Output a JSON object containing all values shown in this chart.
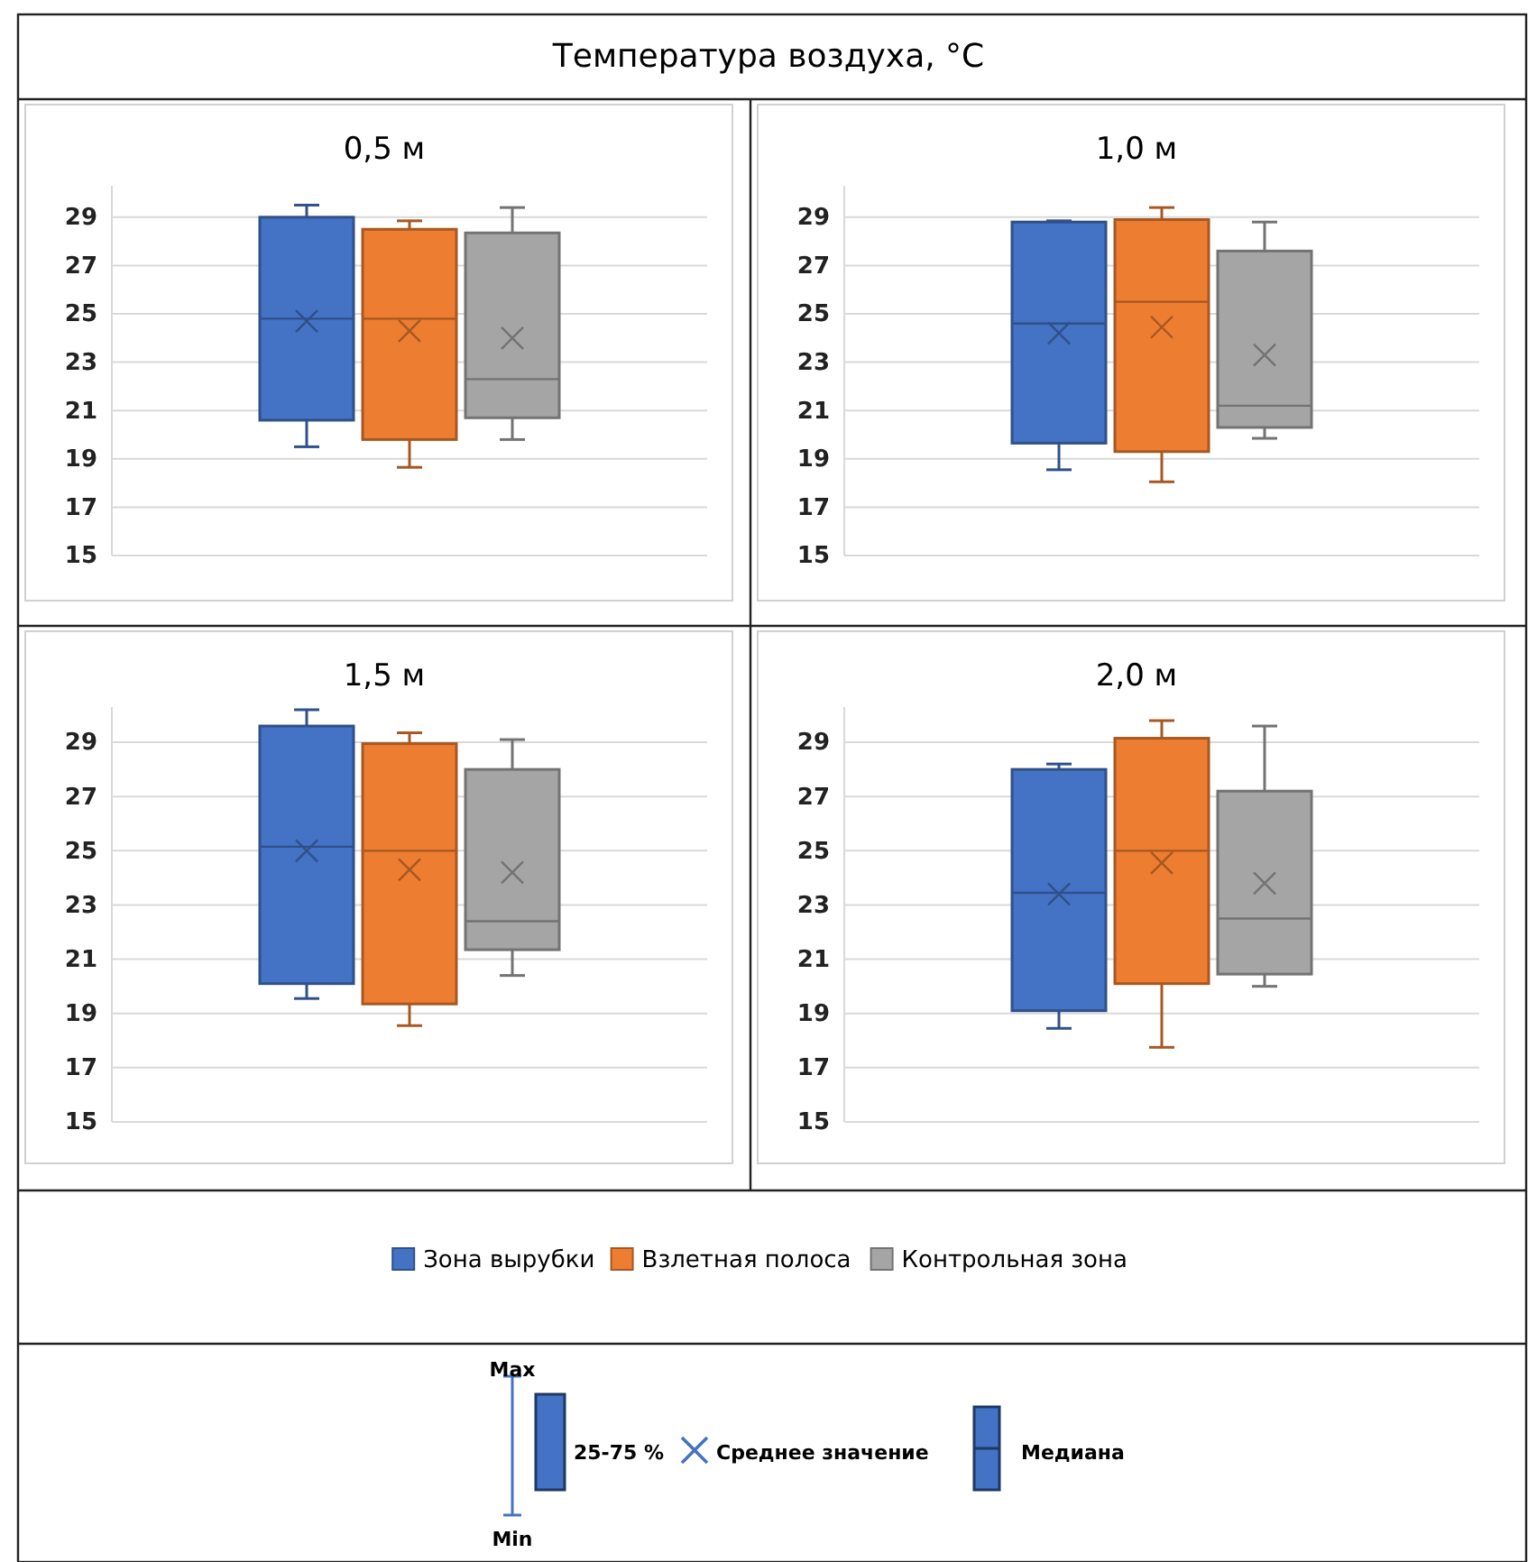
{
  "chart_data": [
    {
      "type": "box",
      "title": "0,5 м",
      "categories": [
        null
      ],
      "ylim": [
        15,
        30.3
      ],
      "yticks": [
        15,
        17,
        19,
        21,
        23,
        25,
        27,
        29
      ],
      "grid": "y",
      "legend": "bottom",
      "series": [
        {
          "name": "Зона вырубки",
          "color": "#4472c4",
          "boxes": [
            {
              "low": 19.5,
              "q1": 20.6,
              "median": 24.8,
              "q3": 29.0,
              "high": 29.5,
              "mean": 24.7
            }
          ]
        },
        {
          "name": "Взлетная полоса",
          "color": "#ed7d31",
          "boxes": [
            {
              "low": 18.65,
              "q1": 19.8,
              "median": 24.8,
              "q3": 28.5,
              "high": 28.85,
              "mean": 24.3
            }
          ]
        },
        {
          "name": "Контрольная зона",
          "color": "#a5a5a5",
          "boxes": [
            {
              "low": 19.8,
              "q1": 20.7,
              "median": 22.3,
              "q3": 28.35,
              "high": 29.4,
              "mean": 24.0
            }
          ]
        }
      ]
    },
    {
      "type": "box",
      "title": "1,0 м",
      "categories": [
        null
      ],
      "ylim": [
        15,
        30.3
      ],
      "yticks": [
        15,
        17,
        19,
        21,
        23,
        25,
        27,
        29
      ],
      "grid": "y",
      "series": [
        {
          "color": "#4472c4",
          "boxes": [
            {
              "low": 18.55,
              "q1": 19.65,
              "median": 24.6,
              "q3": 28.8,
              "high": 28.85,
              "mean": 24.2
            }
          ]
        },
        {
          "color": "#ed7d31",
          "boxes": [
            {
              "low": 18.05,
              "q1": 19.3,
              "median": 25.5,
              "q3": 28.9,
              "high": 29.4,
              "mean": 24.45
            }
          ]
        },
        {
          "color": "#a5a5a5",
          "boxes": [
            {
              "low": 19.85,
              "q1": 20.3,
              "median": 21.2,
              "q3": 27.6,
              "high": 28.8,
              "mean": 23.3
            }
          ]
        }
      ]
    },
    {
      "type": "box",
      "title": "1,5 м",
      "categories": [
        null
      ],
      "ylim": [
        15,
        30.3
      ],
      "yticks": [
        15,
        17,
        19,
        21,
        23,
        25,
        27,
        29
      ],
      "grid": "y",
      "series": [
        {
          "color": "#4472c4",
          "boxes": [
            {
              "low": 19.55,
              "q1": 20.1,
              "median": 25.15,
              "q3": 29.6,
              "high": 30.2,
              "mean": 25.0
            }
          ]
        },
        {
          "color": "#ed7d31",
          "boxes": [
            {
              "low": 18.55,
              "q1": 19.35,
              "median": 25.0,
              "q3": 28.95,
              "high": 29.35,
              "mean": 24.3
            }
          ]
        },
        {
          "color": "#a5a5a5",
          "boxes": [
            {
              "low": 20.4,
              "q1": 21.35,
              "median": 22.4,
              "q3": 28.0,
              "high": 29.1,
              "mean": 24.2
            }
          ]
        }
      ]
    },
    {
      "type": "box",
      "title": "2,0 м",
      "categories": [
        null
      ],
      "ylim": [
        15,
        30.3
      ],
      "yticks": [
        15,
        17,
        19,
        21,
        23,
        25,
        27,
        29
      ],
      "grid": "y",
      "series": [
        {
          "color": "#4472c4",
          "boxes": [
            {
              "low": 18.45,
              "q1": 19.1,
              "median": 23.45,
              "q3": 28.0,
              "high": 28.2,
              "mean": 23.4
            }
          ]
        },
        {
          "color": "#ed7d31",
          "boxes": [
            {
              "low": 17.75,
              "q1": 20.1,
              "median": 25.0,
              "q3": 29.15,
              "high": 29.8,
              "mean": 24.55
            }
          ]
        },
        {
          "color": "#a5a5a5",
          "boxes": [
            {
              "low": 20.0,
              "q1": 20.45,
              "median": 22.5,
              "q3": 27.2,
              "high": 29.6,
              "mean": 23.8
            }
          ]
        }
      ]
    },
    {
      "type": "other",
      "title": "Температура воздуха, °C",
      "annotations": [
        "Max",
        "Min",
        "25-75 %",
        "Среднее значение",
        "Медиана"
      ]
    }
  ]
}
